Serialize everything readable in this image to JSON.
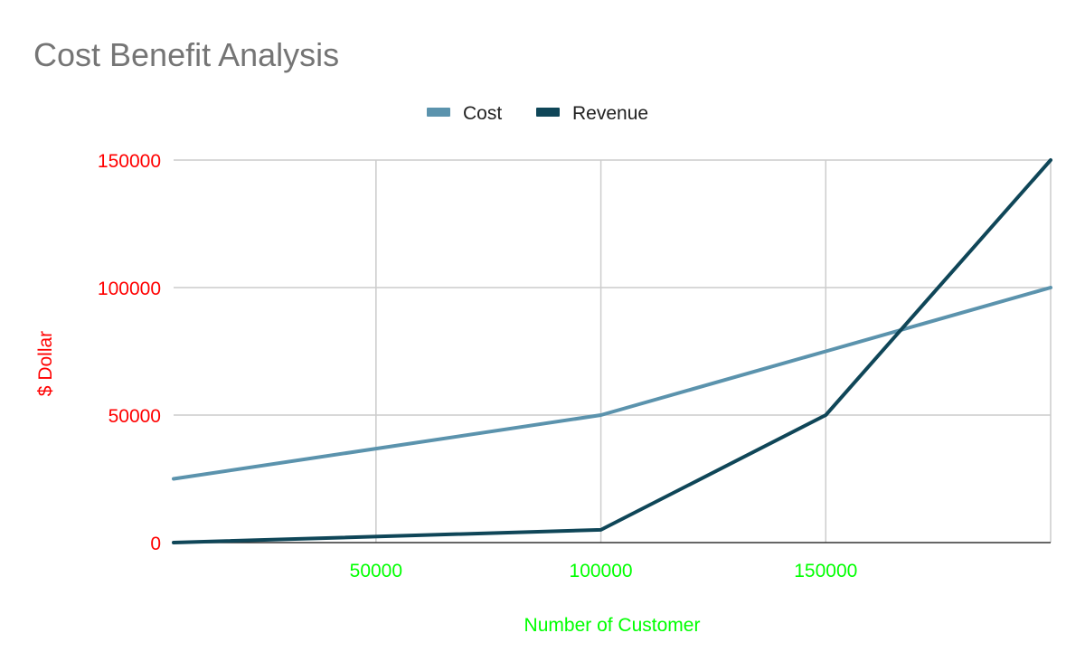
{
  "chart_data": {
    "type": "line",
    "title": "Cost Benefit Analysis",
    "xlabel": "Number of Customer",
    "ylabel": "$ Dollar",
    "x": [
      5000,
      100000,
      150000,
      200000
    ],
    "series": [
      {
        "name": "Cost",
        "values": [
          25000,
          50000,
          75000,
          100000
        ],
        "color": "#5b93ad"
      },
      {
        "name": "Revenue",
        "values": [
          0,
          5000,
          50000,
          150000
        ],
        "color": "#0f4658"
      }
    ],
    "xlim": [
      5000,
      200000
    ],
    "ylim": [
      0,
      150000
    ],
    "xticks": [
      50000,
      100000,
      150000
    ],
    "xtick_labels": [
      "50000",
      "100000",
      "150000"
    ],
    "yticks": [
      0,
      50000,
      100000,
      150000
    ],
    "ytick_labels": [
      "0",
      "50000",
      "100000",
      "150000"
    ],
    "grid": true,
    "legend_position": "top-center",
    "colors": {
      "x_axis_text": "#00ff00",
      "y_axis_text": "#ff0000",
      "title": "#757575",
      "grid": "#cccccc",
      "axis": "#333333"
    }
  }
}
